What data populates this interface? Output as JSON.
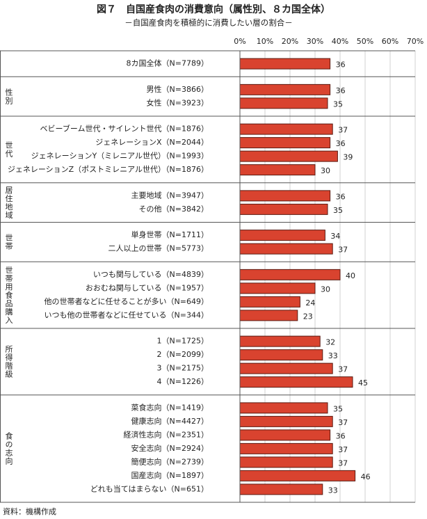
{
  "chart_data": {
    "type": "bar",
    "orientation": "horizontal",
    "title": "図７　自国産食肉の消費意向（属性別、８カ国全体）",
    "subtitle": "－自国産食肉を積極的に消費したい層の割合－",
    "source": "資料：機構作成",
    "color": "#d9432f",
    "xlim": [
      0,
      70
    ],
    "xticks": [
      {
        "value": 0,
        "label": "0%"
      },
      {
        "value": 10,
        "label": "10%"
      },
      {
        "value": 20,
        "label": "20%"
      },
      {
        "value": 30,
        "label": "30%"
      },
      {
        "value": 40,
        "label": "40%"
      },
      {
        "value": 50,
        "label": "50%"
      },
      {
        "value": 60,
        "label": "60%"
      },
      {
        "value": 70,
        "label": "70%"
      }
    ],
    "grid": true,
    "groups": [
      {
        "categories": [
          "8カ国全体（N=7789）"
        ],
        "values": [
          36
        ]
      },
      {
        "name": "性別",
        "categories": [
          "男性（N=3866）",
          "女性（N=3923）"
        ],
        "values": [
          36,
          35
        ]
      },
      {
        "name": "世代",
        "categories": [
          "ベビーブーム世代・サイレント世代（N=1876）",
          "ジェネレーションX（N=2044）",
          "ジェネレーションY（ミレニアル世代）（N=1993）",
          "ジェネレーションZ（ポストミレニアル世代）（N=1876）"
        ],
        "values": [
          37,
          36,
          39,
          30
        ]
      },
      {
        "name": "居住地域",
        "categories": [
          "主要地域（N=3947）",
          "その他（N=3842）"
        ],
        "values": [
          36,
          35
        ]
      },
      {
        "name": "世帯",
        "categories": [
          "単身世帯（N=1711）",
          "二人以上の世帯（N=5773）"
        ],
        "values": [
          34,
          37
        ]
      },
      {
        "name": "世帯用食品購入",
        "categories": [
          "いつも関与している（N=4839）",
          "おおむね関与している（N=1957）",
          "他の世帯者などに任せることが多い（N=649）",
          "いつも他の世帯者などに任せている（N=344）"
        ],
        "values": [
          40,
          30,
          24,
          23
        ]
      },
      {
        "name": "所得階級",
        "categories": [
          "1（N=1725）",
          "2（N=2099）",
          "3（N=2175）",
          "4（N=1226）"
        ],
        "values": [
          32,
          33,
          37,
          45
        ]
      },
      {
        "name": "食の志向",
        "categories": [
          "菜食志向（N=1419）",
          "健康志向（N=4427）",
          "経済性志向（N=2351）",
          "安全志向（N=2924）",
          "簡便志向（N=2739）",
          "国産志向（N=1897）",
          "どれも当てはまらない（N=651）"
        ],
        "values": [
          35,
          37,
          36,
          37,
          37,
          46,
          33
        ]
      }
    ]
  }
}
